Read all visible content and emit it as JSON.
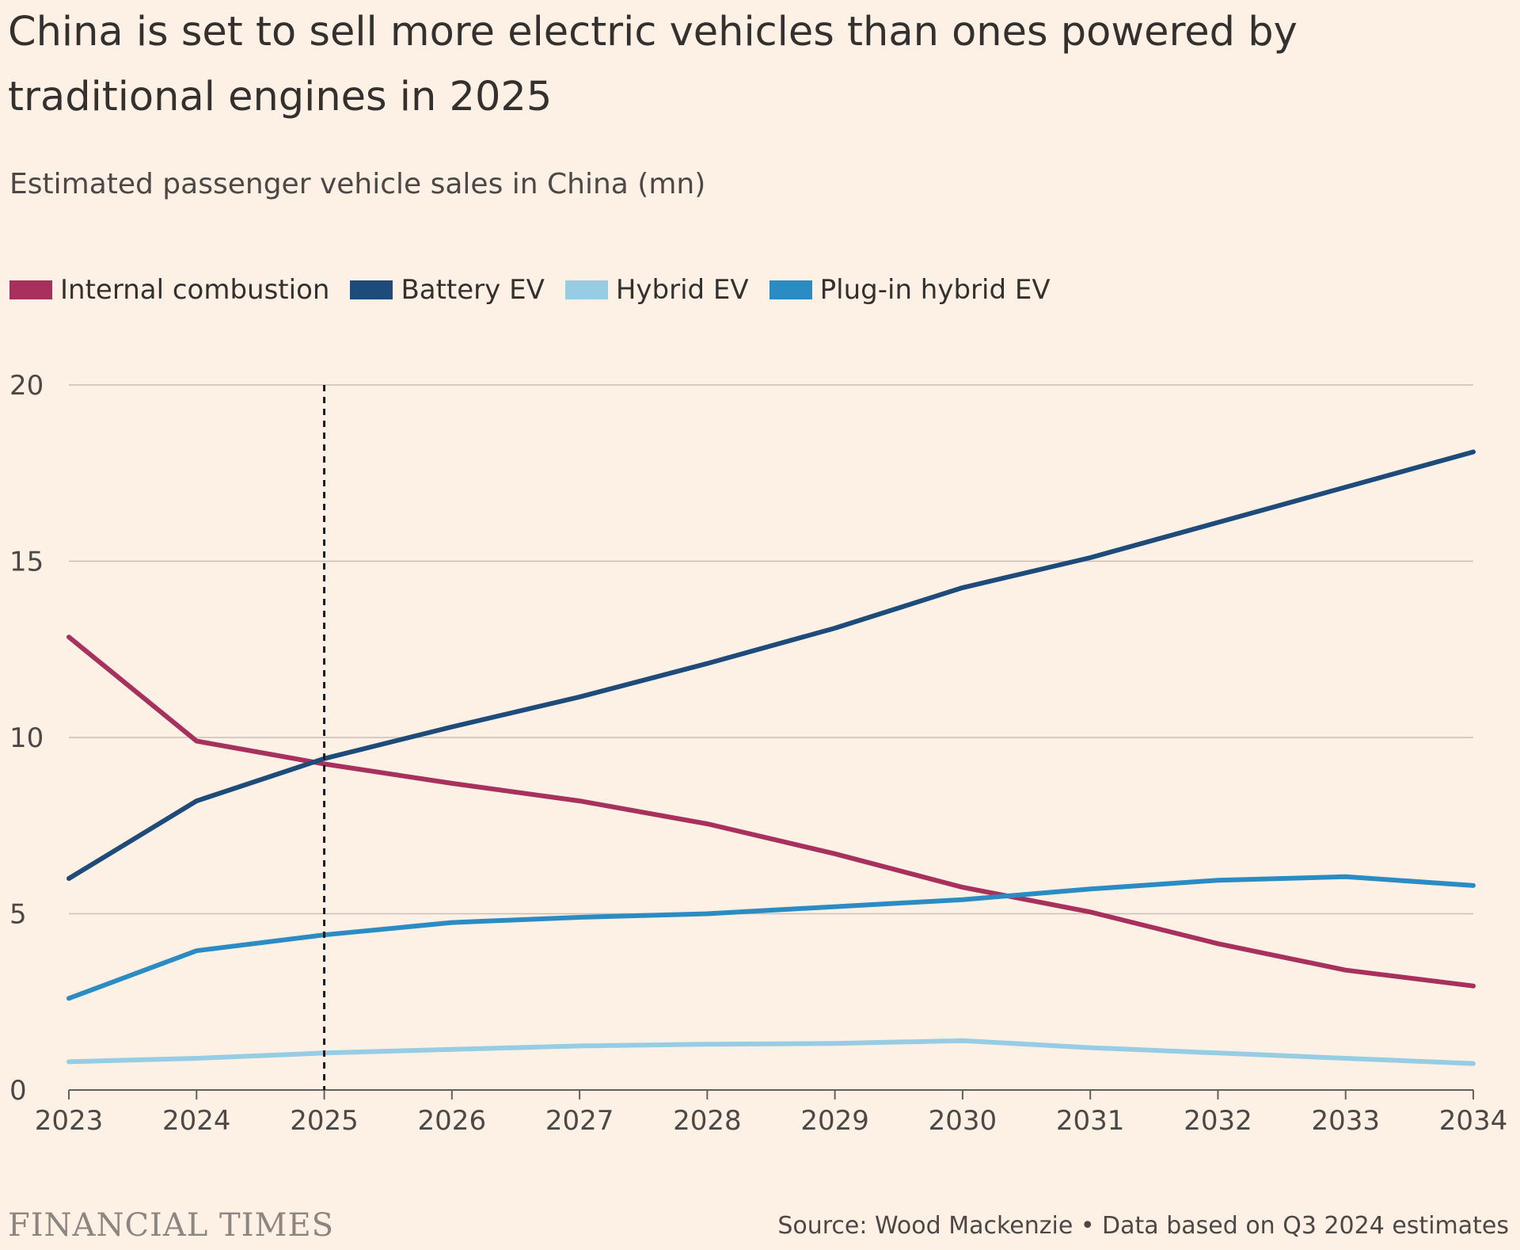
{
  "title": "China is set to sell more electric vehicles than ones powered by traditional engines in 2025",
  "subtitle": "Estimated passenger vehicle sales in China (mn)",
  "footer": {
    "logo": "FINANCIAL TIMES",
    "source": "Source: Wood Mackenzie • Data based on Q3 2024 estimates"
  },
  "chart_data": {
    "type": "line",
    "title": "China is set to sell more electric vehicles than ones powered by traditional engines in 2025",
    "subtitle": "Estimated passenger vehicle sales in China (mn)",
    "xlabel": "",
    "ylabel": "",
    "x": [
      2023,
      2024,
      2025,
      2026,
      2027,
      2028,
      2029,
      2030,
      2031,
      2032,
      2033,
      2034
    ],
    "xlim": [
      2023,
      2034
    ],
    "ylim": [
      0,
      20
    ],
    "yticks": [
      0,
      5,
      10,
      15,
      20
    ],
    "grid": true,
    "legend_position": "top-left",
    "annotation": {
      "type": "vertical-dashed-line",
      "x": 2025
    },
    "series": [
      {
        "name": "Internal combustion",
        "color": "#a8305c",
        "values": [
          12.85,
          9.9,
          9.25,
          8.7,
          8.2,
          7.55,
          6.7,
          5.75,
          5.05,
          4.15,
          3.4,
          2.95
        ]
      },
      {
        "name": "Battery EV",
        "color": "#1d4b7a",
        "values": [
          6.0,
          8.2,
          9.4,
          10.3,
          11.15,
          12.1,
          13.1,
          14.25,
          15.1,
          16.1,
          17.1,
          18.1
        ]
      },
      {
        "name": "Hybrid EV",
        "color": "#96cde4",
        "values": [
          0.8,
          0.9,
          1.05,
          1.15,
          1.25,
          1.3,
          1.32,
          1.4,
          1.2,
          1.05,
          0.9,
          0.75
        ]
      },
      {
        "name": "Plug-in hybrid EV",
        "color": "#2b8cc4",
        "values": [
          2.6,
          3.95,
          4.4,
          4.75,
          4.9,
          5.0,
          5.2,
          5.4,
          5.7,
          5.95,
          6.05,
          5.8
        ]
      }
    ]
  }
}
